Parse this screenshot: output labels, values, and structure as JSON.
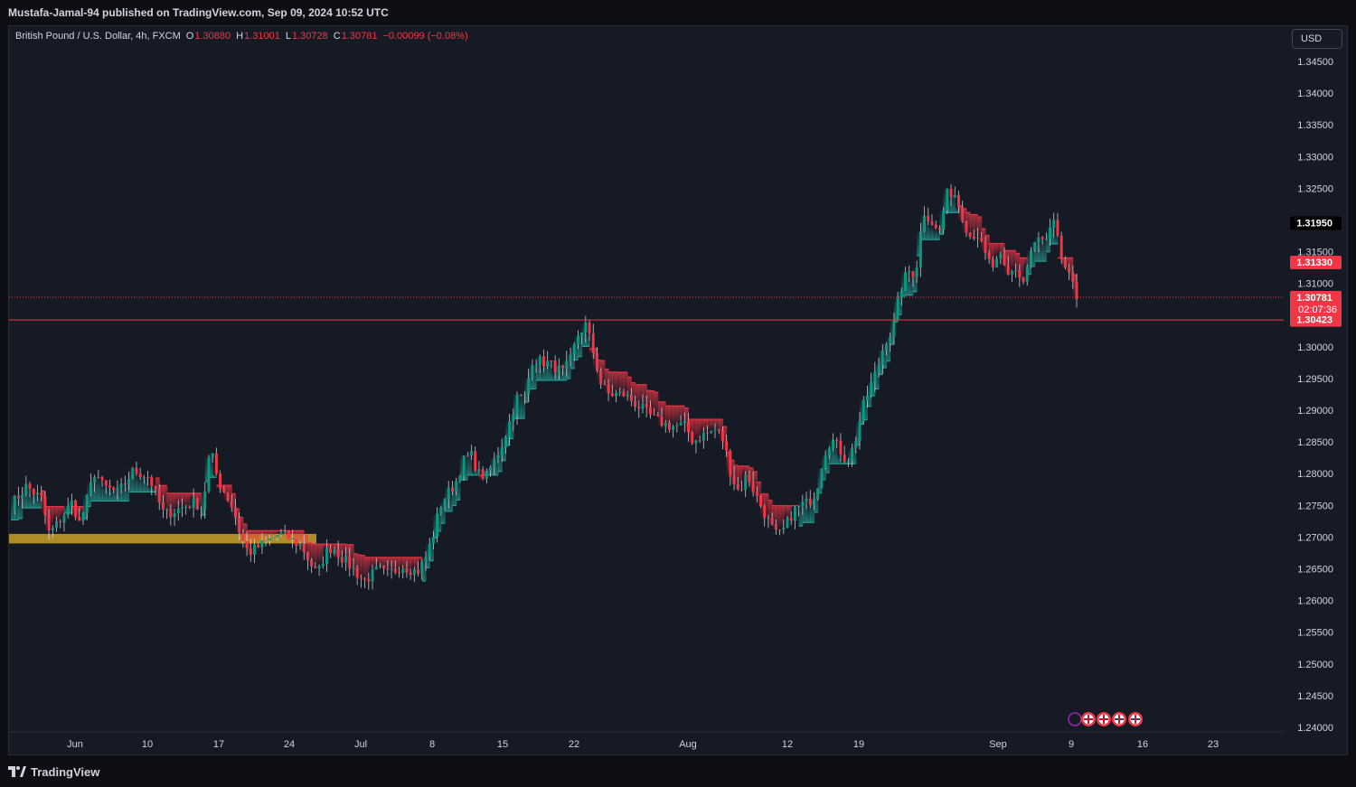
{
  "header": {
    "published_line": "Mustafa-Jamal-94 published on TradingView.com, Sep 09, 2024 10:52 UTC"
  },
  "legend": {
    "symbol": "British Pound / U.S. Dollar, 4h, FXCM",
    "open_label": "O",
    "open": "1.30880",
    "high_label": "H",
    "high": "1.31001",
    "low_label": "L",
    "low": "1.30728",
    "close_label": "C",
    "close": "1.30781",
    "change": "−0.00099 (−0.08%)"
  },
  "currency_button": "USD",
  "footer": {
    "brand": "TradingView"
  },
  "colors": {
    "background": "#161a25",
    "up": "#26a69a",
    "down": "#f23645",
    "up_candle": "#089981",
    "wick": "#e0e3eb",
    "support_zone": "#c9a227"
  },
  "chart_data": {
    "type": "candlestick",
    "symbol": "GBPUSD",
    "timeframe": "4h",
    "y_axis": {
      "range": [
        1.238,
        1.349
      ],
      "ticks": [
        "1.34500",
        "1.34000",
        "1.33500",
        "1.33000",
        "1.32500",
        "1.32000",
        "1.31500",
        "1.31000",
        "1.30500",
        "1.30000",
        "1.29500",
        "1.29000",
        "1.28500",
        "1.28000",
        "1.27500",
        "1.27000",
        "1.26500",
        "1.26000",
        "1.25500",
        "1.25000",
        "1.24500",
        "1.24000"
      ]
    },
    "x_axis": {
      "labels": [
        "Jun",
        "10",
        "17",
        "24",
        "Jul",
        "8",
        "15",
        "22",
        "Aug",
        "12",
        "19",
        "Sep",
        "9",
        "16",
        "23"
      ]
    },
    "price_labels": [
      {
        "value": 1.3195,
        "text": "1.31950",
        "style": "dark"
      },
      {
        "value": 1.3133,
        "text": "1.31330",
        "style": "red"
      },
      {
        "value": 1.30781,
        "text": "1.30781",
        "sub": "02:07:36",
        "style": "red"
      },
      {
        "value": 1.30423,
        "text": "1.30423",
        "style": "red"
      }
    ],
    "horizontal_lines": [
      {
        "value": 1.30781,
        "style": "dotted"
      },
      {
        "value": 1.30423,
        "style": "solid"
      }
    ],
    "support_zone": {
      "from": 1.269,
      "to": 1.2705
    },
    "price_path": [
      [
        0,
        1.275
      ],
      [
        2,
        1.278
      ],
      [
        4,
        1.276
      ],
      [
        5,
        1.2705
      ],
      [
        6,
        1.272
      ],
      [
        8,
        1.2755
      ],
      [
        9,
        1.272
      ],
      [
        11,
        1.2805
      ],
      [
        12,
        1.278
      ],
      [
        14,
        1.277
      ],
      [
        16,
        1.2805
      ],
      [
        18,
        1.2795
      ],
      [
        20,
        1.2735
      ],
      [
        22,
        1.2745
      ],
      [
        24,
        1.2755
      ],
      [
        25,
        1.2745
      ],
      [
        26,
        1.284
      ],
      [
        27,
        1.279
      ],
      [
        29,
        1.2745
      ],
      [
        30,
        1.27
      ],
      [
        31,
        1.2675
      ],
      [
        33,
        1.269
      ],
      [
        35,
        1.2705
      ],
      [
        36,
        1.27
      ],
      [
        38,
        1.2685
      ],
      [
        39,
        1.266
      ],
      [
        40,
        1.264
      ],
      [
        41,
        1.2675
      ],
      [
        42,
        1.2685
      ],
      [
        43,
        1.267
      ],
      [
        45,
        1.2645
      ],
      [
        46,
        1.263
      ],
      [
        48,
        1.265
      ],
      [
        49,
        1.264
      ],
      [
        51,
        1.2655
      ],
      [
        53,
        1.2645
      ],
      [
        54,
        1.2665
      ],
      [
        55,
        1.27
      ],
      [
        56,
        1.275
      ],
      [
        57,
        1.277
      ],
      [
        58,
        1.2785
      ],
      [
        59,
        1.282
      ],
      [
        60,
        1.283
      ],
      [
        61,
        1.28
      ],
      [
        62,
        1.2795
      ],
      [
        64,
        1.2845
      ],
      [
        65,
        1.288
      ],
      [
        66,
        1.292
      ],
      [
        67,
        1.292
      ],
      [
        68,
        1.298
      ],
      [
        70,
        1.2975
      ],
      [
        72,
        1.296
      ],
      [
        73,
        1.298
      ],
      [
        74,
        1.302
      ],
      [
        75,
        1.3035
      ],
      [
        76,
        1.299
      ],
      [
        77,
        1.294
      ],
      [
        78,
        1.2925
      ],
      [
        80,
        1.2925
      ],
      [
        82,
        1.2905
      ],
      [
        84,
        1.2885
      ],
      [
        86,
        1.2875
      ],
      [
        88,
        1.2875
      ],
      [
        89,
        1.285
      ],
      [
        90,
        1.286
      ],
      [
        92,
        1.287
      ],
      [
        93,
        1.285
      ],
      [
        94,
        1.2795
      ],
      [
        95,
        1.277
      ],
      [
        96,
        1.28
      ],
      [
        97,
        1.277
      ],
      [
        98,
        1.2745
      ],
      [
        99,
        1.272
      ],
      [
        100,
        1.27
      ],
      [
        101,
        1.2715
      ],
      [
        102,
        1.274
      ],
      [
        103,
        1.275
      ],
      [
        104,
        1.2755
      ],
      [
        105,
        1.277
      ],
      [
        106,
        1.283
      ],
      [
        107,
        1.2855
      ],
      [
        108,
        1.284
      ],
      [
        109,
        1.282
      ],
      [
        110,
        1.2845
      ],
      [
        111,
        1.29
      ],
      [
        112,
        1.2935
      ],
      [
        113,
        1.2965
      ],
      [
        114,
        1.301
      ],
      [
        115,
        1.3025
      ],
      [
        116,
        1.309
      ],
      [
        117,
        1.312
      ],
      [
        118,
        1.3115
      ],
      [
        119,
        1.3215
      ],
      [
        120,
        1.32
      ],
      [
        121,
        1.3175
      ],
      [
        122,
        1.324
      ],
      [
        123,
        1.3245
      ],
      [
        124,
        1.321
      ],
      [
        125,
        1.3175
      ],
      [
        126,
        1.318
      ],
      [
        127,
        1.3145
      ],
      [
        128,
        1.3125
      ],
      [
        129,
        1.314
      ],
      [
        130,
        1.311
      ],
      [
        131,
        1.3125
      ],
      [
        132,
        1.31
      ],
      [
        133,
        1.315
      ],
      [
        134,
        1.317
      ],
      [
        135,
        1.3165
      ],
      [
        136,
        1.3195
      ],
      [
        137,
        1.314
      ],
      [
        138,
        1.311
      ],
      [
        139,
        1.3078
      ]
    ]
  }
}
